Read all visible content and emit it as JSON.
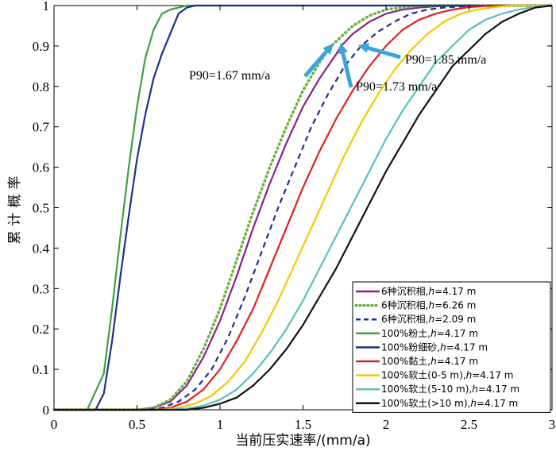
{
  "chart_data": {
    "type": "line",
    "xlabel": "当前压实速率/(mm/a)",
    "ylabel": "累计概率",
    "xlim": [
      0,
      3
    ],
    "ylim": [
      0,
      1
    ],
    "xticks": [
      0,
      0.5,
      1,
      1.5,
      2,
      2.5,
      3
    ],
    "yticks": [
      0,
      0.1,
      0.2,
      0.3,
      0.4,
      0.5,
      0.6,
      0.7,
      0.8,
      0.9,
      1
    ],
    "xtick_labels": [
      "0",
      "0.5",
      "1",
      "1.5",
      "2",
      "2.5",
      "3"
    ],
    "ytick_labels": [
      "0",
      "0.1",
      "0.2",
      "0.3",
      "0.4",
      "0.5",
      "0.6",
      "0.7",
      "0.8",
      "0.9",
      "1"
    ],
    "grid": false,
    "legend": "bottom-right",
    "series": [
      {
        "name": "6种沉积相,h=4.17 m",
        "legend_prefix": "6种沉积相,",
        "legend_var": "h",
        "legend_suffix": "=4.17 m",
        "color": "#8B1F8B",
        "dash": "solid",
        "x": [
          0,
          0.5,
          0.6,
          0.7,
          0.8,
          0.9,
          1.0,
          1.1,
          1.2,
          1.3,
          1.4,
          1.5,
          1.6,
          1.7,
          1.73,
          1.8,
          1.9,
          2.0,
          2.1,
          2.2,
          2.3,
          2.4,
          2.5,
          3.0
        ],
        "y": [
          0,
          0,
          0.005,
          0.02,
          0.06,
          0.13,
          0.22,
          0.33,
          0.45,
          0.56,
          0.66,
          0.75,
          0.82,
          0.88,
          0.9,
          0.93,
          0.96,
          0.98,
          0.99,
          0.995,
          0.998,
          1,
          1,
          1
        ]
      },
      {
        "name": "6种沉积相,h=6.26 m",
        "legend_prefix": "6种沉积相,",
        "legend_var": "h",
        "legend_suffix": "=6.26 m",
        "color": "#6DB33F",
        "dash": "dotted",
        "x": [
          0,
          0.5,
          0.6,
          0.7,
          0.8,
          0.9,
          1.0,
          1.1,
          1.2,
          1.3,
          1.4,
          1.5,
          1.6,
          1.67,
          1.8,
          1.9,
          2.0,
          2.1,
          2.2,
          2.3,
          3.0
        ],
        "y": [
          0,
          0,
          0.005,
          0.025,
          0.07,
          0.15,
          0.25,
          0.37,
          0.49,
          0.6,
          0.7,
          0.79,
          0.86,
          0.9,
          0.95,
          0.975,
          0.99,
          0.995,
          0.999,
          1,
          1
        ]
      },
      {
        "name": "6种沉积相,h=2.09 m",
        "legend_prefix": "6种沉积相,",
        "legend_var": "h",
        "legend_suffix": "=2.09 m",
        "color": "#1F2F8F",
        "dash": "dashed",
        "x": [
          0,
          0.55,
          0.65,
          0.75,
          0.85,
          0.95,
          1.05,
          1.15,
          1.25,
          1.35,
          1.45,
          1.55,
          1.65,
          1.75,
          1.85,
          1.95,
          2.05,
          2.15,
          2.25,
          2.35,
          2.5,
          2.6,
          3.0
        ],
        "y": [
          0,
          0,
          0.005,
          0.02,
          0.05,
          0.1,
          0.18,
          0.28,
          0.39,
          0.5,
          0.6,
          0.7,
          0.78,
          0.85,
          0.9,
          0.935,
          0.96,
          0.98,
          0.99,
          0.995,
          0.999,
          1,
          1
        ]
      },
      {
        "name": "100%粉土,h=4.17 m",
        "legend_prefix": "100%粉土,",
        "legend_var": "h",
        "legend_suffix": "=4.17 m",
        "color": "#3FA03F",
        "dash": "solid",
        "x": [
          0,
          0.2,
          0.3,
          0.35,
          0.4,
          0.45,
          0.5,
          0.55,
          0.6,
          0.65,
          0.7,
          0.8,
          3.0
        ],
        "y": [
          0,
          0,
          0.09,
          0.25,
          0.43,
          0.6,
          0.75,
          0.87,
          0.94,
          0.98,
          0.99,
          1,
          1
        ]
      },
      {
        "name": "100%粉细砂,h=4.17 m",
        "legend_prefix": "100%粉细砂,",
        "legend_var": "h",
        "legend_suffix": "=4.17 m",
        "color": "#1F2F8F",
        "dash": "solid",
        "x": [
          0,
          0.25,
          0.3,
          0.35,
          0.4,
          0.45,
          0.5,
          0.55,
          0.6,
          0.65,
          0.7,
          0.75,
          0.8,
          0.85,
          0.9,
          3.0
        ],
        "y": [
          0,
          0,
          0.04,
          0.17,
          0.33,
          0.48,
          0.62,
          0.73,
          0.82,
          0.88,
          0.93,
          0.98,
          0.995,
          1,
          1,
          1
        ]
      },
      {
        "name": "100%黏土,h=4.17 m",
        "legend_prefix": "100%黏土,",
        "legend_var": "h",
        "legend_suffix": "=4.17 m",
        "color": "#E02020",
        "dash": "solid",
        "x": [
          0,
          0.6,
          0.7,
          0.8,
          0.9,
          1.0,
          1.1,
          1.2,
          1.3,
          1.4,
          1.5,
          1.6,
          1.7,
          1.8,
          1.9,
          2.0,
          2.1,
          2.2,
          2.3,
          2.4,
          2.5,
          2.6,
          2.7,
          3.0
        ],
        "y": [
          0,
          0,
          0.005,
          0.02,
          0.05,
          0.1,
          0.17,
          0.25,
          0.35,
          0.45,
          0.55,
          0.64,
          0.72,
          0.79,
          0.85,
          0.9,
          0.94,
          0.965,
          0.98,
          0.99,
          0.996,
          0.999,
          1,
          1
        ]
      },
      {
        "name": "100%软土(0-5 m),h=4.17 m",
        "legend_prefix": "100%软土(0-5 m),",
        "legend_var": "h",
        "legend_suffix": "=4.17 m",
        "color": "#F5C800",
        "dash": "solid",
        "x": [
          0,
          0.65,
          0.75,
          0.85,
          0.95,
          1.05,
          1.15,
          1.25,
          1.35,
          1.45,
          1.55,
          1.65,
          1.75,
          1.85,
          1.95,
          2.05,
          2.15,
          2.25,
          2.35,
          2.45,
          2.55,
          2.65,
          2.75,
          3.0
        ],
        "y": [
          0,
          0,
          0.005,
          0.015,
          0.035,
          0.07,
          0.12,
          0.19,
          0.27,
          0.36,
          0.45,
          0.54,
          0.63,
          0.71,
          0.78,
          0.84,
          0.89,
          0.93,
          0.96,
          0.98,
          0.99,
          0.996,
          1,
          1
        ]
      },
      {
        "name": "100%软土(5-10 m),h=4.17 m",
        "legend_prefix": "100%软土(5-10 m),",
        "legend_var": "h",
        "legend_suffix": "=4.17 m",
        "color": "#5ABFBF",
        "dash": "solid",
        "x": [
          0,
          0.7,
          0.8,
          0.9,
          1.0,
          1.1,
          1.2,
          1.3,
          1.4,
          1.5,
          1.6,
          1.7,
          1.8,
          1.9,
          2.0,
          2.1,
          2.2,
          2.3,
          2.4,
          2.5,
          2.6,
          2.7,
          2.8,
          2.9,
          3.0
        ],
        "y": [
          0,
          0,
          0.003,
          0.01,
          0.025,
          0.05,
          0.09,
          0.14,
          0.2,
          0.27,
          0.35,
          0.43,
          0.51,
          0.59,
          0.67,
          0.74,
          0.8,
          0.86,
          0.9,
          0.94,
          0.965,
          0.98,
          0.99,
          0.997,
          1
        ]
      },
      {
        "name": "100%软土(>10 m),h=4.17 m",
        "legend_prefix": "100%软土(>10 m),",
        "legend_var": "h",
        "legend_suffix": "=4.17 m",
        "color": "#111111",
        "dash": "solid",
        "x": [
          0,
          0.8,
          0.9,
          1.0,
          1.1,
          1.2,
          1.3,
          1.4,
          1.5,
          1.6,
          1.7,
          1.8,
          1.9,
          2.0,
          2.1,
          2.2,
          2.3,
          2.4,
          2.5,
          2.6,
          2.7,
          2.8,
          2.9,
          3.0
        ],
        "y": [
          0,
          0,
          0.005,
          0.015,
          0.03,
          0.06,
          0.1,
          0.15,
          0.21,
          0.28,
          0.35,
          0.43,
          0.51,
          0.59,
          0.66,
          0.73,
          0.79,
          0.85,
          0.89,
          0.93,
          0.96,
          0.98,
          0.995,
          1
        ]
      }
    ],
    "annotations": [
      {
        "text": "P90=1.67 mm/a",
        "point": [
          1.67,
          0.9
        ]
      },
      {
        "text": "P90=1.73 mm/a",
        "point": [
          1.73,
          0.9
        ]
      },
      {
        "text": "P90=1.85 mm/a",
        "point": [
          1.85,
          0.9
        ]
      }
    ]
  },
  "colors": {
    "arrow": "#3AA6D8",
    "frame": "#000000"
  }
}
